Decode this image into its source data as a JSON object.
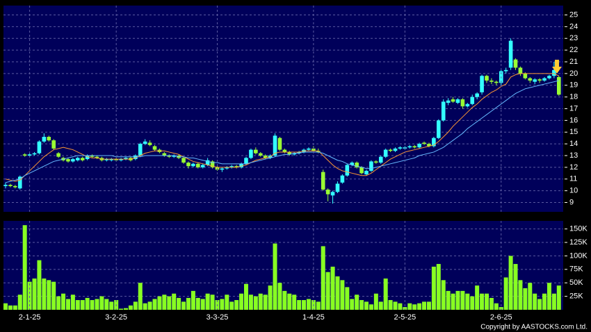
{
  "chart_data": [
    {
      "type": "candlestick",
      "up_color": "#33ffff",
      "down_color": "#99ff33",
      "grid": true,
      "ylim": [
        8.2,
        25.8
      ],
      "yticks": [
        9,
        10,
        11,
        12,
        13,
        14,
        15,
        16,
        17,
        18,
        19,
        20,
        21,
        22,
        23,
        24,
        25
      ],
      "open": [
        10.4,
        10.5,
        10.4,
        10.2,
        13.1,
        13.0,
        13.1,
        13.2,
        14.2,
        14.6,
        14.3,
        13.2,
        12.8,
        12.7,
        12.5,
        12.6,
        12.8,
        12.7,
        13.0,
        12.9,
        12.8,
        12.6,
        12.6,
        12.7,
        12.6,
        12.7,
        12.8,
        12.7,
        13.0,
        14.0,
        14.1,
        13.8,
        13.5,
        13.2,
        13.0,
        12.9,
        13.0,
        12.8,
        12.4,
        12.1,
        12.3,
        12.0,
        12.2,
        12.5,
        12.0,
        11.8,
        11.9,
        12.0,
        12.1,
        12.0,
        12.3,
        12.8,
        13.5,
        13.2,
        13.0,
        12.8,
        13.0,
        14.5,
        13.5,
        13.3,
        13.1,
        13.2,
        13.3,
        13.5,
        13.6,
        13.4,
        11.6,
        10.1,
        9.6,
        9.9,
        10.7,
        11.3,
        12.2,
        12.4,
        12.0,
        11.4,
        11.7,
        12.5,
        12.4,
        12.9,
        13.5,
        13.4,
        13.6,
        13.6,
        13.7,
        13.8,
        13.7,
        14.1,
        14.0,
        13.8,
        14.5,
        16.0,
        17.5,
        17.8,
        17.5,
        17.8,
        17.2,
        17.4,
        18.0,
        18.4,
        19.8,
        19.4,
        19.3,
        19.2,
        20.2,
        20.5,
        21.2,
        20.5,
        20.0,
        19.6,
        19.3,
        19.5,
        19.4,
        19.6,
        19.8,
        19.7
      ],
      "high": [
        10.7,
        10.6,
        10.5,
        11.3,
        13.2,
        13.2,
        13.3,
        14.3,
        14.9,
        14.7,
        14.4,
        13.3,
        12.9,
        12.8,
        12.8,
        12.9,
        12.9,
        13.1,
        13.1,
        13.0,
        12.9,
        12.8,
        12.8,
        12.8,
        12.8,
        12.9,
        12.9,
        13.1,
        14.1,
        14.4,
        14.3,
        13.9,
        13.6,
        13.3,
        13.1,
        13.1,
        13.1,
        12.9,
        12.5,
        12.4,
        12.4,
        12.3,
        12.8,
        12.6,
        12.1,
        12.0,
        12.1,
        12.2,
        12.2,
        12.4,
        12.9,
        13.6,
        13.7,
        13.3,
        13.1,
        13.1,
        14.9,
        14.6,
        13.6,
        13.4,
        13.3,
        13.4,
        13.6,
        13.7,
        13.8,
        13.6,
        11.8,
        10.2,
        10.0,
        10.8,
        11.4,
        12.3,
        12.5,
        12.5,
        12.1,
        11.8,
        12.6,
        12.6,
        13.0,
        13.6,
        13.6,
        13.7,
        13.8,
        13.8,
        13.9,
        13.9,
        14.1,
        14.2,
        14.1,
        14.6,
        16.1,
        17.8,
        17.9,
        18.0,
        17.9,
        17.9,
        17.5,
        18.2,
        18.4,
        19.9,
        19.9,
        19.6,
        19.4,
        20.3,
        20.5,
        23.0,
        21.3,
        20.6,
        20.1,
        19.7,
        19.6,
        19.6,
        19.7,
        19.9,
        21.0,
        19.8
      ],
      "low": [
        10.2,
        10.3,
        10.2,
        10.1,
        12.9,
        12.9,
        13.0,
        13.1,
        14.1,
        14.2,
        13.5,
        12.8,
        12.5,
        12.4,
        12.4,
        12.5,
        12.5,
        12.6,
        12.8,
        12.7,
        12.5,
        12.5,
        12.5,
        12.5,
        12.5,
        12.6,
        12.5,
        12.6,
        12.9,
        13.9,
        13.8,
        13.4,
        13.2,
        12.9,
        12.8,
        12.8,
        12.7,
        12.3,
        11.9,
        12.0,
        11.9,
        11.9,
        12.1,
        11.9,
        11.7,
        11.6,
        11.8,
        11.9,
        11.9,
        11.9,
        12.2,
        12.7,
        13.1,
        12.9,
        12.7,
        12.7,
        12.9,
        13.4,
        13.2,
        13.0,
        13.0,
        13.1,
        13.2,
        13.4,
        13.3,
        13.2,
        10.0,
        9.1,
        8.9,
        9.8,
        10.6,
        11.2,
        12.1,
        11.9,
        11.4,
        11.3,
        11.6,
        12.3,
        12.3,
        12.8,
        13.3,
        13.3,
        13.5,
        13.5,
        13.6,
        13.6,
        13.6,
        13.9,
        13.7,
        13.7,
        14.4,
        15.9,
        17.3,
        17.5,
        17.4,
        17.0,
        17.1,
        17.3,
        17.8,
        18.2,
        19.2,
        19.1,
        19.0,
        19.0,
        20.0,
        20.3,
        20.3,
        19.8,
        19.5,
        19.2,
        19.1,
        19.2,
        19.3,
        19.5,
        19.6,
        18.1
      ],
      "close": [
        10.5,
        10.4,
        10.3,
        11.2,
        13.0,
        13.1,
        13.2,
        14.2,
        14.6,
        14.3,
        13.6,
        12.9,
        12.6,
        12.5,
        12.7,
        12.8,
        12.6,
        13.0,
        12.9,
        12.8,
        12.6,
        12.7,
        12.7,
        12.6,
        12.7,
        12.8,
        12.6,
        13.0,
        14.0,
        14.2,
        13.9,
        13.5,
        13.3,
        13.0,
        12.9,
        13.0,
        12.8,
        12.4,
        12.1,
        12.3,
        12.0,
        12.2,
        12.6,
        12.0,
        11.8,
        11.9,
        12.0,
        12.1,
        12.0,
        12.3,
        12.8,
        13.5,
        13.2,
        13.0,
        12.8,
        13.0,
        14.7,
        13.5,
        13.3,
        13.1,
        13.2,
        13.3,
        13.5,
        13.6,
        13.4,
        13.3,
        10.1,
        9.7,
        9.9,
        10.6,
        11.3,
        12.2,
        12.4,
        12.0,
        11.5,
        11.7,
        12.5,
        12.4,
        12.9,
        13.5,
        13.4,
        13.6,
        13.7,
        13.7,
        13.8,
        13.7,
        14.0,
        14.0,
        13.8,
        14.5,
        16.0,
        17.6,
        17.7,
        17.6,
        17.8,
        17.2,
        17.4,
        18.0,
        18.3,
        19.8,
        19.4,
        19.3,
        19.2,
        20.2,
        20.3,
        22.8,
        20.5,
        20.0,
        19.6,
        19.4,
        19.5,
        19.4,
        19.6,
        19.8,
        20.3,
        18.2
      ],
      "lines": [
        {
          "color": "#ff9933",
          "values": [
            11.0,
            10.9,
            10.8,
            10.9,
            11.3,
            11.7,
            12.1,
            12.5,
            12.9,
            13.2,
            13.5,
            13.6,
            13.7,
            13.6,
            13.5,
            13.3,
            13.1,
            12.9,
            12.8,
            12.8,
            12.7,
            12.7,
            12.7,
            12.7,
            12.7,
            12.7,
            12.7,
            12.8,
            13.0,
            13.2,
            13.3,
            13.4,
            13.4,
            13.4,
            13.3,
            13.2,
            13.1,
            12.9,
            12.7,
            12.5,
            12.4,
            12.3,
            12.2,
            12.1,
            12.0,
            12.0,
            12.0,
            12.0,
            12.0,
            12.1,
            12.2,
            12.4,
            12.6,
            12.7,
            12.8,
            12.9,
            13.2,
            13.3,
            13.3,
            13.3,
            13.3,
            13.3,
            13.4,
            13.4,
            13.4,
            13.4,
            13.0,
            12.6,
            12.2,
            11.9,
            11.7,
            11.6,
            11.5,
            11.4,
            11.3,
            11.3,
            11.5,
            11.8,
            12.1,
            12.4,
            12.7,
            12.9,
            13.1,
            13.3,
            13.4,
            13.5,
            13.6,
            13.7,
            13.8,
            13.9,
            14.2,
            14.6,
            15.0,
            15.5,
            15.9,
            16.3,
            16.7,
            17.1,
            17.4,
            17.8,
            18.1,
            18.4,
            18.6,
            18.9,
            19.1,
            19.7,
            19.9,
            20.0,
            20.0,
            20.0,
            20.0,
            20.0,
            20.0,
            20.0,
            20.0,
            19.8
          ]
        },
        {
          "color": "#66bbff",
          "values": [
            10.7,
            10.8,
            10.9,
            11.0,
            11.3,
            11.5,
            11.7,
            11.9,
            12.1,
            12.3,
            12.5,
            12.6,
            12.7,
            12.8,
            12.9,
            13.0,
            13.0,
            13.0,
            13.0,
            13.0,
            13.0,
            13.0,
            13.0,
            12.9,
            12.9,
            12.9,
            12.9,
            12.9,
            12.9,
            13.0,
            13.0,
            13.0,
            13.0,
            13.0,
            13.0,
            13.0,
            12.9,
            12.9,
            12.8,
            12.8,
            12.7,
            12.6,
            12.5,
            12.4,
            12.4,
            12.3,
            12.3,
            12.3,
            12.3,
            12.3,
            12.3,
            12.4,
            12.5,
            12.6,
            12.7,
            12.8,
            12.9,
            13.0,
            13.1,
            13.1,
            13.2,
            13.2,
            13.3,
            13.3,
            13.3,
            13.3,
            13.2,
            13.0,
            12.8,
            12.6,
            12.5,
            12.3,
            12.2,
            12.1,
            12.0,
            11.9,
            11.9,
            12.0,
            12.1,
            12.2,
            12.3,
            12.4,
            12.5,
            12.6,
            12.7,
            12.8,
            13.0,
            13.1,
            13.2,
            13.3,
            13.5,
            13.7,
            14.0,
            14.3,
            14.6,
            14.9,
            15.3,
            15.6,
            15.9,
            16.2,
            16.5,
            16.8,
            17.1,
            17.4,
            17.7,
            18.0,
            18.3,
            18.5,
            18.7,
            18.8,
            18.9,
            19.0,
            19.1,
            19.2,
            19.3,
            19.4
          ]
        }
      ]
    },
    {
      "type": "bar",
      "color": "#88ff22",
      "grid": true,
      "ylim": [
        0,
        165000
      ],
      "yticks": [
        {
          "value": 25000,
          "label": "25K"
        },
        {
          "value": 50000,
          "label": "50K"
        },
        {
          "value": 75000,
          "label": "75K"
        },
        {
          "value": 100000,
          "label": "100K"
        },
        {
          "value": 125000,
          "label": "125K"
        },
        {
          "value": 150000,
          "label": "150K"
        }
      ],
      "categories": [
        null,
        null,
        null,
        null,
        null,
        "2-1-25",
        null,
        null,
        null,
        null,
        null,
        null,
        null,
        null,
        null,
        null,
        null,
        null,
        null,
        null,
        null,
        null,
        null,
        "3-2-25",
        null,
        null,
        null,
        null,
        null,
        null,
        null,
        null,
        null,
        null,
        null,
        null,
        null,
        null,
        null,
        null,
        null,
        null,
        null,
        null,
        "3-3-25",
        null,
        null,
        null,
        null,
        null,
        null,
        null,
        null,
        null,
        null,
        null,
        null,
        null,
        null,
        null,
        null,
        null,
        null,
        null,
        "1-4-25",
        null,
        null,
        null,
        null,
        null,
        null,
        null,
        null,
        null,
        null,
        null,
        null,
        null,
        null,
        null,
        null,
        null,
        null,
        "2-5-25",
        null,
        null,
        null,
        null,
        null,
        null,
        null,
        null,
        null,
        null,
        null,
        null,
        null,
        null,
        null,
        null,
        null,
        null,
        null,
        "2-6-25",
        null,
        null,
        null,
        null,
        null,
        null,
        null,
        null,
        null,
        null,
        null,
        null
      ],
      "values": [
        12000,
        8000,
        8000,
        28000,
        157000,
        52000,
        58000,
        92000,
        58000,
        55000,
        52000,
        25000,
        30000,
        20000,
        28000,
        18000,
        18000,
        22000,
        18000,
        20000,
        25000,
        20000,
        15000,
        18000,
        2000,
        3000,
        8000,
        15000,
        50000,
        12000,
        15000,
        20000,
        25000,
        28000,
        25000,
        30000,
        22000,
        15000,
        22000,
        35000,
        22000,
        20000,
        30000,
        28000,
        18000,
        20000,
        28000,
        15000,
        18000,
        30000,
        48000,
        28000,
        25000,
        30000,
        28000,
        45000,
        123000,
        50000,
        35000,
        30000,
        28000,
        18000,
        18000,
        20000,
        18000,
        15000,
        118000,
        70000,
        80000,
        62000,
        55000,
        42000,
        20000,
        28000,
        18000,
        15000,
        10000,
        30000,
        15000,
        58000,
        18000,
        15000,
        12000,
        5000,
        12000,
        10000,
        12000,
        15000,
        15000,
        80000,
        85000,
        55000,
        35000,
        30000,
        35000,
        35000,
        30000,
        25000,
        45000,
        30000,
        30000,
        22000,
        12000,
        5000,
        60000,
        100000,
        85000,
        55000,
        40000,
        50000,
        30000,
        20000,
        30000,
        50000,
        30000,
        45000
      ]
    }
  ],
  "copyright": "Copyright by AASTOCKS.com Ltd."
}
